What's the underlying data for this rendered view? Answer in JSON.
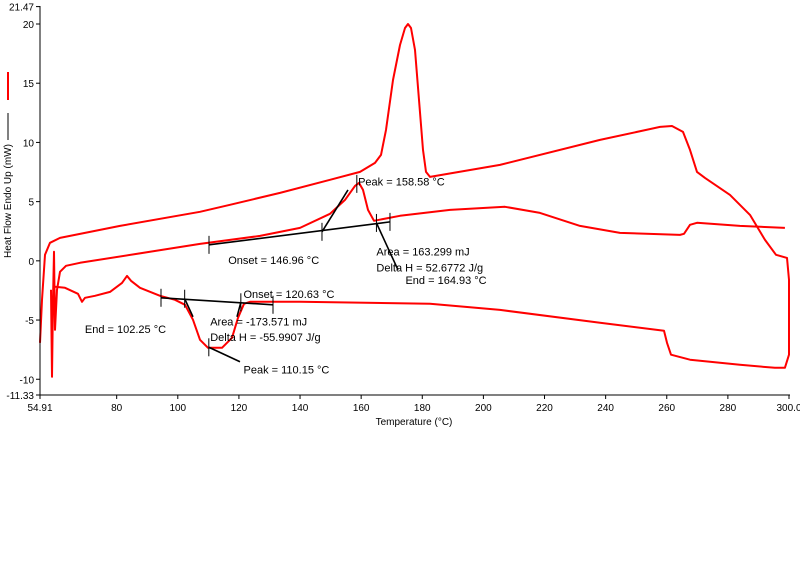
{
  "chart_data": {
    "type": "line",
    "title": "",
    "xlabel": "Temperature (°C)",
    "ylabel": "Heat Flow Endo Up (mW)",
    "xlim": [
      54.91,
      300.0
    ],
    "ylim": [
      -11.33,
      21.47
    ],
    "x_ticks": [
      "54.91",
      "80",
      "100",
      "120",
      "140",
      "160",
      "180",
      "200",
      "220",
      "240",
      "260",
      "280",
      "300.0"
    ],
    "x_tick_values": [
      54.91,
      80,
      100,
      120,
      140,
      160,
      180,
      200,
      220,
      240,
      260,
      280,
      300
    ],
    "y_ticks": [
      "21.47",
      "20",
      "15",
      "10",
      "5",
      "0",
      "-5",
      "-10",
      "-11.33"
    ],
    "y_tick_values": [
      21.47,
      20,
      15,
      10,
      5,
      0,
      -5,
      -10,
      -11.33
    ],
    "grid": false,
    "legend": {
      "placement": "left",
      "colors": [
        "#ff0000",
        "#000000"
      ]
    },
    "series": [
      {
        "name": "heating-cooling-run",
        "color": "#ff0000",
        "x": [
          54.91,
          55.56,
          56.55,
          58.18,
          61.45,
          81.09,
          107.26,
          117.08,
          133.44,
          149.8,
          159.62,
          164.53,
          166.49,
          168.13,
          170.42,
          172.71,
          174.35,
          175.33,
          176.31,
          177.62,
          178.93,
          180.24,
          181.22,
          182.53,
          205.43,
          238.15,
          257.78,
          261.71,
          265.31,
          267.6,
          269.89,
          272.51,
          280.69,
          287.23,
          292.14,
          295.74,
          299.34,
          299.99,
          300.0,
          299.99,
          298.67,
          295.4,
          283.94,
          267.6,
          261.38,
          260.07,
          259.09,
          238.15,
          205.43,
          182.53,
          139.98,
          123.62,
          121.66,
          119.7,
          117.73,
          114.46,
          109.88,
          107.26,
          104.97,
          102.35,
          99.08,
          94.17,
          87.63,
          84.68,
          83.38,
          81.74,
          77.81,
          72.9,
          69.63,
          68.65,
          67.34,
          63.09,
          59.82,
          59.16
        ],
        "y": [
          -6.92,
          -3.29,
          0.51,
          1.52,
          1.94,
          2.95,
          4.14,
          4.73,
          5.74,
          6.84,
          7.51,
          8.27,
          8.95,
          11.06,
          15.27,
          18.23,
          19.66,
          20.0,
          19.66,
          17.81,
          13.59,
          9.37,
          7.51,
          7.09,
          8.1,
          10.21,
          11.31,
          11.39,
          10.89,
          9.37,
          7.51,
          7.0,
          5.57,
          3.88,
          1.77,
          0.51,
          0.25,
          -1.6,
          -4.98,
          -7.93,
          -9.03,
          -9.03,
          -8.78,
          -8.35,
          -7.93,
          -6.92,
          -5.91,
          -5.23,
          -4.14,
          -3.63,
          -3.46,
          -3.46,
          -3.63,
          -4.81,
          -6.5,
          -7.34,
          -7.34,
          -6.67,
          -4.98,
          -3.71,
          -3.29,
          -2.95,
          -2.28,
          -1.69,
          -1.27,
          -1.86,
          -2.62,
          -2.95,
          -3.12,
          -3.46,
          -2.78,
          -2.28,
          -2.19,
          -2.19
        ]
      },
      {
        "name": "second-heating-run",
        "color": "#ff0000",
        "x": [
          58.51,
          58.84,
          59.16,
          59.49,
          59.82,
          60.47,
          61.45,
          63.42,
          68.0,
          90.9,
          107.26,
          126.89,
          139.98,
          149.8,
          154.71,
          157.98,
          159.29,
          160.6,
          162.24,
          164.2,
          172.71,
          189.07,
          207.06,
          218.51,
          231.6,
          244.69,
          264.32,
          265.63,
          267.6,
          269.89,
          283.94,
          298.67
        ],
        "y": [
          -2.45,
          -9.79,
          -3.29,
          0.76,
          -5.82,
          -2.45,
          -0.93,
          -0.42,
          -0.17,
          0.76,
          1.43,
          2.11,
          2.78,
          3.97,
          5.15,
          6.33,
          6.58,
          5.99,
          4.3,
          3.38,
          3.8,
          4.3,
          4.56,
          4.05,
          2.95,
          2.36,
          2.19,
          2.28,
          3.04,
          3.21,
          2.95,
          2.78
        ]
      }
    ],
    "annotation_lines": [
      {
        "name": "melt-baseline",
        "x": [
          110.21,
          169.43
        ],
        "y": [
          1.35,
          3.29
        ]
      },
      {
        "name": "melt-onset-tangent",
        "x": [
          147.18,
          155.69
        ],
        "y": [
          2.45,
          5.99
        ]
      },
      {
        "name": "melt-end-leader",
        "x": [
          165.0,
          172.05
        ],
        "y": [
          3.2,
          -0.76
        ]
      },
      {
        "name": "cryst-baseline",
        "x": [
          94.5,
          131.15
        ],
        "y": [
          -3.12,
          -3.71
        ]
      },
      {
        "name": "cryst-end-tangent",
        "x": [
          102.25,
          104.97
        ],
        "y": [
          -3.2,
          -4.73
        ]
      },
      {
        "name": "cryst-onset-tangent",
        "x": [
          120.63,
          119.37
        ],
        "y": [
          -3.5,
          -4.73
        ]
      },
      {
        "name": "cryst-peak-leader",
        "x": [
          110.15,
          120.35
        ],
        "y": [
          -7.3,
          -8.52
        ]
      }
    ],
    "annotation_ticks": [
      {
        "x": 110.21,
        "y": 1.35
      },
      {
        "x": 147.18,
        "y": 2.45
      },
      {
        "x": 165.0,
        "y": 3.2
      },
      {
        "x": 169.43,
        "y": 3.29
      },
      {
        "x": 158.58,
        "y": 6.5
      },
      {
        "x": 94.5,
        "y": -3.12
      },
      {
        "x": 102.25,
        "y": -3.2
      },
      {
        "x": 120.63,
        "y": -3.5
      },
      {
        "x": 131.15,
        "y": -3.71
      },
      {
        "x": 110.15,
        "y": -7.3
      }
    ],
    "annotations": [
      {
        "text": "Peak = 158.58 °C",
        "x": 159.0,
        "y": 6.35
      },
      {
        "text": "Onset = 146.96 °C",
        "x": 116.5,
        "y": -0.25
      },
      {
        "text": "Area = 163.299 mJ",
        "x": 165.0,
        "y": 0.45
      },
      {
        "text": "Delta H = 52.6772 J/g",
        "x": 165.0,
        "y": -0.9
      },
      {
        "text": "End = 164.93 °C",
        "x": 174.5,
        "y": -1.95
      },
      {
        "text": "Onset = 120.63 °C",
        "x": 121.5,
        "y": -3.15
      },
      {
        "text": "Area = -173.571 mJ",
        "x": 110.6,
        "y": -5.45
      },
      {
        "text": "Delta H = -55.9907 J/g",
        "x": 110.6,
        "y": -6.75
      },
      {
        "text": "End = 102.25 °C",
        "x": 69.6,
        "y": -6.1
      },
      {
        "text": "Peak = 110.15 °C",
        "x": 121.5,
        "y": -9.5
      }
    ]
  }
}
